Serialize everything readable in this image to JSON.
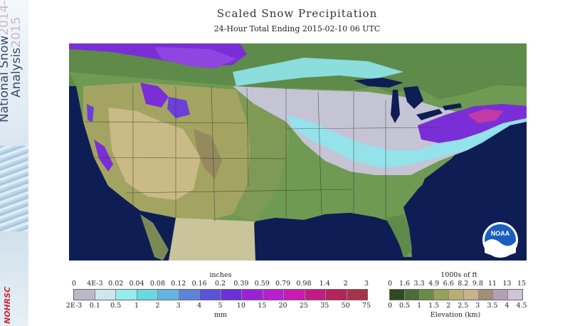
{
  "sidebar": {
    "word_national": "National",
    "word_snow": "Snow",
    "word_analysis": "Analysis",
    "year_start": "2014-",
    "year_end": "2015",
    "agency_logo_text": "NOHRSC"
  },
  "header": {
    "title": "Scaled Snow Precipitation",
    "subtitle": "24-Hour Total Ending 2015-02-10 06 UTC"
  },
  "map": {
    "logo_text": "NOAA",
    "colors": {
      "ocean": "#0f1d55",
      "terrain_low": "#5e8a4a",
      "terrain_mid": "#a4a462",
      "terrain_high": "#c9ba86",
      "snow_light": "#c8c6dc",
      "snow_cyan": "#8fe6ec",
      "snow_heavy": "#7a2fd6",
      "snow_max": "#c23aa6"
    }
  },
  "legend_precip": {
    "unit_top": "inches",
    "unit_bottom": "mm",
    "ticks_top": [
      "0",
      "4E-3",
      "0.02",
      "0.04",
      "0.08",
      "0.12",
      "0.16",
      "0.2",
      "0.39",
      "0.59",
      "0.79",
      "0.98",
      "1.4",
      "2",
      "3"
    ],
    "ticks_bottom": [
      "2E-3",
      "0.1",
      "0.5",
      "1",
      "2",
      "3",
      "4",
      "5",
      "10",
      "15",
      "20",
      "25",
      "35",
      "50",
      "75"
    ],
    "colors": [
      "#b9b9c7",
      "#cde7ee",
      "#96ecee",
      "#6ad8e3",
      "#62b6df",
      "#5b84da",
      "#5a53d9",
      "#6d2fd8",
      "#9a22d6",
      "#b91fd0",
      "#ca1ab4",
      "#c41a86",
      "#b42457",
      "#a83348"
    ]
  },
  "legend_elev": {
    "unit_top": "1000s of ft",
    "unit_bottom": "Elevation (km)",
    "ticks_top": [
      "0",
      "1.6",
      "3.3",
      "4.9",
      "6.6",
      "8.2",
      "9.8",
      "11",
      "13",
      "15"
    ],
    "ticks_bottom": [
      "0",
      "0.5",
      "1",
      "1.5",
      "2",
      "2.5",
      "3",
      "3.5",
      "4",
      "4.5"
    ],
    "colors": [
      "#2f4a22",
      "#4c6d35",
      "#6c8a44",
      "#96a05a",
      "#b9ae72",
      "#c7b28a",
      "#a08f7a",
      "#b4a0b4",
      "#d0c4d6"
    ]
  }
}
